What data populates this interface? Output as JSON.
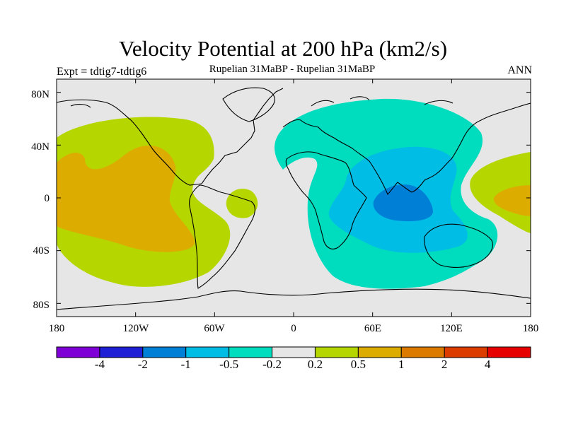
{
  "title": "Velocity Potential at 200 hPa (km2/s)",
  "subtitle": "Rupelian  31MaBP - Rupelian  31MaBP",
  "left_label": "Expt = tdtig7-tdtig6",
  "right_label": "ANN",
  "map": {
    "projection": "cylindrical-equidistant",
    "lon_range": [
      -180,
      180
    ],
    "lat_range": [
      -90,
      90
    ],
    "lat_ticks": [
      {
        "label": "80N",
        "lat": 80
      },
      {
        "label": "40N",
        "lat": 40
      },
      {
        "label": "0",
        "lat": 0
      },
      {
        "label": "40S",
        "lat": -40
      },
      {
        "label": "80S",
        "lat": -80
      }
    ],
    "lon_ticks": [
      {
        "label": "180",
        "lon": -180
      },
      {
        "label": "120W",
        "lon": -120
      },
      {
        "label": "60W",
        "lon": -60
      },
      {
        "label": "0",
        "lon": 0
      },
      {
        "label": "60E",
        "lon": 60
      },
      {
        "label": "120E",
        "lon": 120
      },
      {
        "label": "180",
        "lon": 180
      }
    ],
    "field_regions": [
      {
        "name": "pacific-positive",
        "level": "0.2 to 0.5",
        "center": "140W, 5N"
      },
      {
        "name": "pacific-core",
        "level": "0.5 to 1",
        "center": "140W, 5N"
      },
      {
        "name": "atlantic-positive",
        "level": "0.2 to 0.5",
        "center": "38W, 0"
      },
      {
        "name": "dateline-positive",
        "level": "0.2 to 0.5",
        "center": "165E, 0"
      },
      {
        "name": "dateline-core",
        "level": "0.5 to 1",
        "center": "170E, 0"
      },
      {
        "name": "indian-negative",
        "level": "-0.5 to -0.2",
        "center": "65E, 10S"
      },
      {
        "name": "indian-mid",
        "level": "-1 to -0.5",
        "center": "75E, 10S"
      },
      {
        "name": "indian-min",
        "level": "-2 to -1",
        "center": "75E, 5S"
      }
    ]
  },
  "colorbar": {
    "colors": [
      "#7f00d6",
      "#1f1fd6",
      "#007fd6",
      "#00bde6",
      "#00dcbe",
      "#e6e6e6",
      "#b6d600",
      "#dcad00",
      "#dc7a00",
      "#dc3c00",
      "#e60000"
    ],
    "labels": [
      "-4",
      "-2",
      "-1",
      "-0.5",
      "-0.2",
      "0.2",
      "0.5",
      "1",
      "2",
      "4"
    ]
  }
}
